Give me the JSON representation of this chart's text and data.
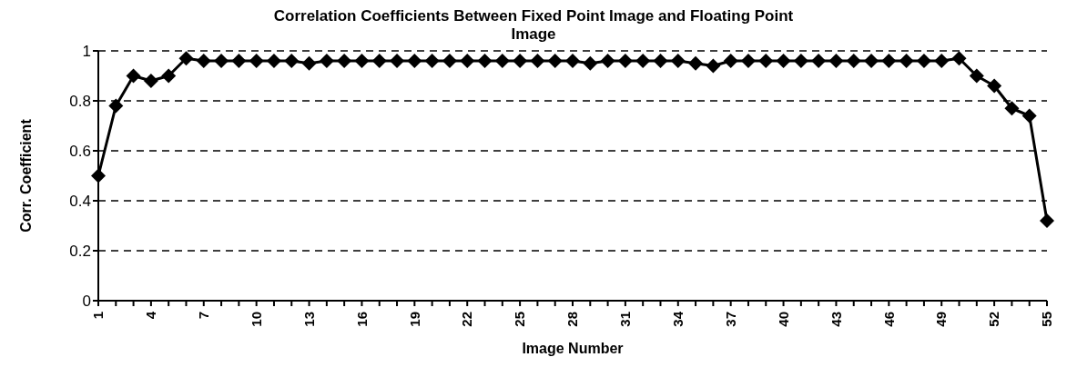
{
  "chart_data": {
    "type": "line",
    "title": "Correlation Coefficients Between Fixed Point Image and Floating Point Image",
    "xlabel": "Image Number",
    "ylabel": "Corr. Coefficient",
    "categories": [
      "1",
      null,
      null,
      "4",
      null,
      null,
      "7",
      null,
      null,
      "10",
      null,
      null,
      "13",
      null,
      null,
      "16",
      null,
      null,
      "19",
      null,
      null,
      "22",
      null,
      null,
      "25",
      null,
      null,
      "28",
      null,
      null,
      "31",
      null,
      null,
      "34",
      null,
      null,
      "37",
      null,
      null,
      "40",
      null,
      null,
      "43",
      null,
      null,
      "46",
      null,
      null,
      "49",
      null,
      null,
      "52",
      null,
      null,
      "55"
    ],
    "series": [
      {
        "color": "#000000",
        "values": [
          0.5,
          0.78,
          0.9,
          0.88,
          0.9,
          0.97,
          0.96,
          0.96,
          0.96,
          0.96,
          0.96,
          0.96,
          0.95,
          0.96,
          0.96,
          0.96,
          0.96,
          0.96,
          0.96,
          0.96,
          0.96,
          0.96,
          0.96,
          0.96,
          0.96,
          0.96,
          0.96,
          0.96,
          0.95,
          0.96,
          0.96,
          0.96,
          0.96,
          0.96,
          0.95,
          0.94,
          0.96,
          0.96,
          0.96,
          0.96,
          0.96,
          0.96,
          0.96,
          0.96,
          0.96,
          0.96,
          0.96,
          0.96,
          0.96,
          0.97,
          0.9,
          0.86,
          0.77,
          0.74,
          0.32
        ]
      }
    ],
    "ylim": [
      0,
      1
    ],
    "yticks": [
      0,
      0.2,
      0.4,
      0.6,
      0.8,
      1
    ],
    "grid": "y",
    "marker": "diamond",
    "line_style": "solid"
  }
}
